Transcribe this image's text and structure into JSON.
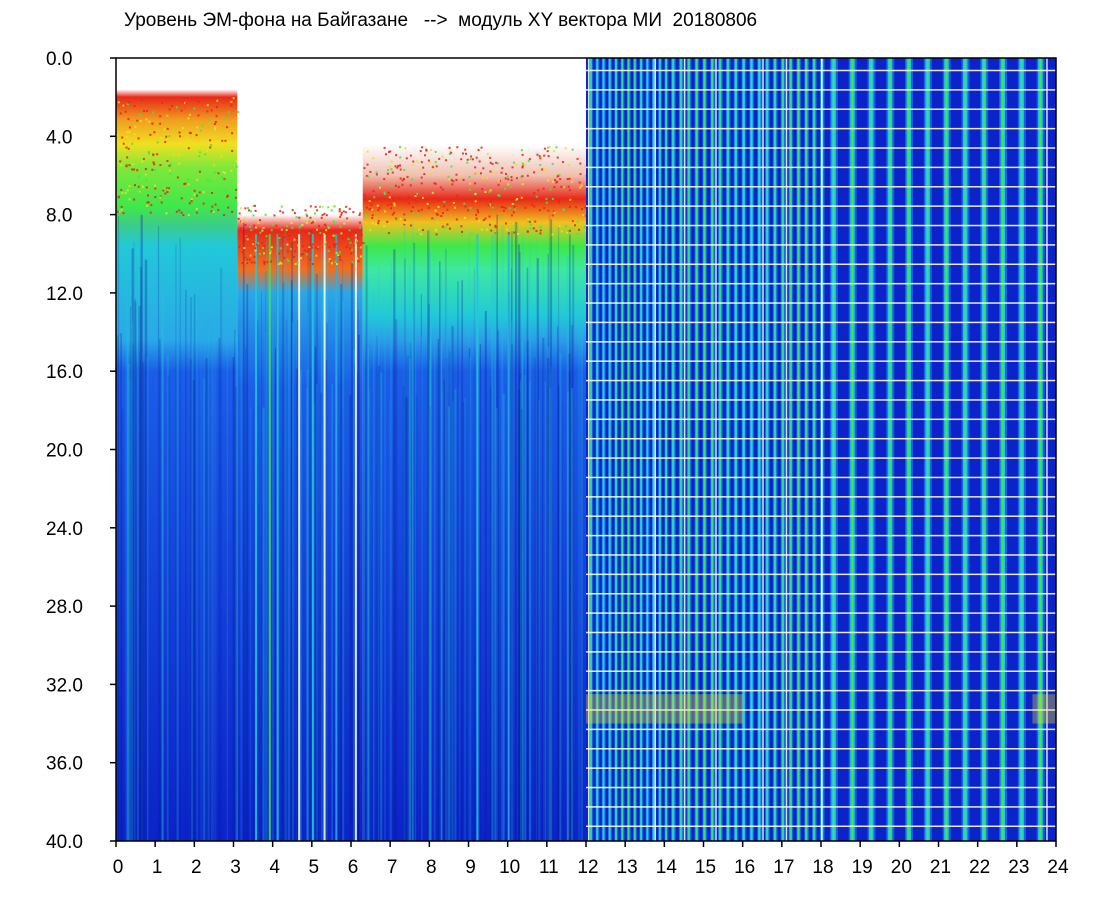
{
  "chart_data": {
    "type": "heatmap",
    "title": "Уровень ЭМ-фона на Байгазане   -->  модуль XY вектора МИ  20180806",
    "xlabel": "",
    "ylabel": "",
    "xlim": [
      0,
      24
    ],
    "ylim": [
      0,
      40
    ],
    "y_inverted": true,
    "x_ticks": [
      "0",
      "1",
      "2",
      "3",
      "4",
      "5",
      "6",
      "7",
      "8",
      "9",
      "10",
      "11",
      "12",
      "13",
      "14",
      "15",
      "16",
      "17",
      "18",
      "19",
      "20",
      "21",
      "22",
      "23",
      "24"
    ],
    "y_ticks": [
      "0.0",
      "4.0",
      "8.0",
      "12.0",
      "16.0",
      "20.0",
      "24.0",
      "28.0",
      "32.0",
      "36.0",
      "40.0"
    ],
    "colors": {
      "background_level": "#0b23c8",
      "low": "#1a5ee8",
      "mid": "#22c8d8",
      "high": "#3ee84a",
      "peak": "#f0e020",
      "extreme": "#e82818"
    },
    "regions": [
      {
        "name": "upper-band-left",
        "x": [
          0,
          3.1
        ],
        "y_top": 2.0,
        "y_dense_red": [
          2.5,
          4.5
        ],
        "y_green": [
          4.5,
          7.5
        ],
        "y_cyan": [
          8.5,
          14.5
        ]
      },
      {
        "name": "dip",
        "x": [
          3.1,
          6.3
        ],
        "y_top": 7.5,
        "y_red": [
          8.0,
          11.0
        ]
      },
      {
        "name": "upper-band-right",
        "x": [
          6.3,
          12.0
        ],
        "y_top": 4.5,
        "y_red": [
          7.5,
          8.5
        ],
        "y_green": [
          8.5,
          11.0
        ],
        "y_cyan": [
          11.0,
          14.5
        ]
      },
      {
        "name": "periodic-pattern",
        "x": [
          12.0,
          24.0
        ],
        "y": [
          0,
          40
        ]
      }
    ],
    "grid": false,
    "legend": "none"
  }
}
